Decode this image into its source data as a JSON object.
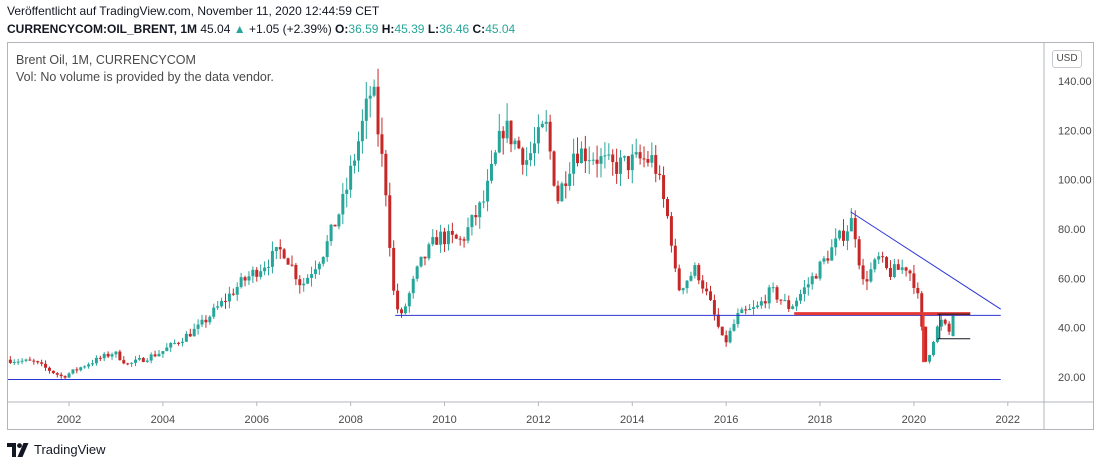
{
  "header": {
    "published": "Veröffentlicht auf TradingView.com, November 11, 2020 12:44:59 CET",
    "symbol": "CURRENCYCOM:OIL_BRENT, 1M",
    "price": "45.04",
    "change_arrow": "▲",
    "change": "+1.05 (+2.39%)",
    "o_label": "O:",
    "o_value": "36.59",
    "h_label": "H:",
    "h_value": "45.39",
    "l_label": "L:",
    "l_value": "36.46",
    "c_label": "C:",
    "c_value": "45.04"
  },
  "legend": {
    "title": "Brent Oil, 1M, CURRENCYCOM",
    "volume_note": "Vol: No volume is provided by the data vendor."
  },
  "currency_badge": "USD",
  "branding": {
    "name": "TradingView",
    "icon": "tradingview-logo-icon"
  },
  "colors": {
    "up": "#26a69a",
    "down": "#c62828",
    "trendline": "#2b35d6",
    "support": "#e53935",
    "axis_text": "#4a4a4a",
    "grid_frame": "#b2b5be"
  },
  "chart_data": {
    "type": "candlestick",
    "interval": "1M",
    "x_range": [
      2000.7,
      2022.75
    ],
    "ylim": [
      10,
      150
    ],
    "y_ticks": [
      20,
      40,
      60,
      80,
      100,
      120,
      140
    ],
    "y_tick_labels": [
      "20.00",
      "40.00",
      "60.00",
      "80.00",
      "100.00",
      "120.00",
      "140.00"
    ],
    "x_ticks": [
      2002,
      2004,
      2006,
      2008,
      2010,
      2012,
      2014,
      2016,
      2018,
      2020,
      2022
    ],
    "x_tick_labels": [
      "2002",
      "2004",
      "2006",
      "2008",
      "2010",
      "2012",
      "2014",
      "2016",
      "2018",
      "2020",
      "2022"
    ],
    "grid": false,
    "price_anchors": [
      [
        2000.75,
        27
      ],
      [
        2001.3,
        26
      ],
      [
        2001.9,
        20
      ],
      [
        2002.4,
        25
      ],
      [
        2003.0,
        30
      ],
      [
        2003.3,
        25
      ],
      [
        2004.0,
        30
      ],
      [
        2004.8,
        40
      ],
      [
        2005.7,
        58
      ],
      [
        2006.6,
        72
      ],
      [
        2007.0,
        57
      ],
      [
        2007.5,
        72
      ],
      [
        2007.9,
        92
      ],
      [
        2008.5,
        138
      ],
      [
        2008.8,
        95
      ],
      [
        2008.95,
        55
      ],
      [
        2009.1,
        43
      ],
      [
        2009.5,
        65
      ],
      [
        2009.9,
        77
      ],
      [
        2010.4,
        75
      ],
      [
        2010.9,
        92
      ],
      [
        2011.3,
        122
      ],
      [
        2011.8,
        108
      ],
      [
        2012.2,
        122
      ],
      [
        2012.45,
        92
      ],
      [
        2012.8,
        112
      ],
      [
        2013.2,
        110
      ],
      [
        2013.6,
        105
      ],
      [
        2014.2,
        108
      ],
      [
        2014.5,
        108
      ],
      [
        2014.85,
        80
      ],
      [
        2015.0,
        55
      ],
      [
        2015.4,
        64
      ],
      [
        2015.7,
        50
      ],
      [
        2016.0,
        33
      ],
      [
        2016.3,
        45
      ],
      [
        2016.7,
        48
      ],
      [
        2017.0,
        55
      ],
      [
        2017.4,
        48
      ],
      [
        2017.8,
        58
      ],
      [
        2018.3,
        72
      ],
      [
        2018.75,
        84
      ],
      [
        2018.95,
        58
      ],
      [
        2019.3,
        68
      ],
      [
        2019.5,
        62
      ],
      [
        2019.9,
        65
      ],
      [
        2020.1,
        56
      ],
      [
        2020.3,
        25
      ],
      [
        2020.45,
        35
      ],
      [
        2020.6,
        43
      ],
      [
        2020.8,
        38
      ],
      [
        2020.87,
        45.04
      ]
    ],
    "annotations": [
      {
        "name": "descending-trendline",
        "type": "line",
        "from": [
          2018.65,
          87
        ],
        "to": [
          2021.85,
          47.5
        ],
        "color": "#2b35d6"
      },
      {
        "name": "horizontal-support-45",
        "type": "line",
        "from": [
          2008.95,
          45
        ],
        "to": [
          2021.85,
          45
        ],
        "color": "#2b35d6"
      },
      {
        "name": "horizontal-support-19",
        "type": "line",
        "from": [
          2000.7,
          19
        ],
        "to": [
          2021.85,
          19
        ],
        "color": "#2b35d6"
      },
      {
        "name": "red-resistance-46",
        "type": "line",
        "from": [
          2017.45,
          45.7
        ],
        "to": [
          2021.2,
          45.7
        ],
        "color": "#e53935"
      },
      {
        "name": "box-top-45",
        "type": "line",
        "from": [
          2020.5,
          45.5
        ],
        "to": [
          2021.2,
          45.5
        ],
        "color": "#131722"
      },
      {
        "name": "box-bottom-35",
        "type": "line",
        "from": [
          2020.5,
          35.5
        ],
        "to": [
          2021.2,
          35.5
        ],
        "color": "#131722"
      }
    ]
  }
}
